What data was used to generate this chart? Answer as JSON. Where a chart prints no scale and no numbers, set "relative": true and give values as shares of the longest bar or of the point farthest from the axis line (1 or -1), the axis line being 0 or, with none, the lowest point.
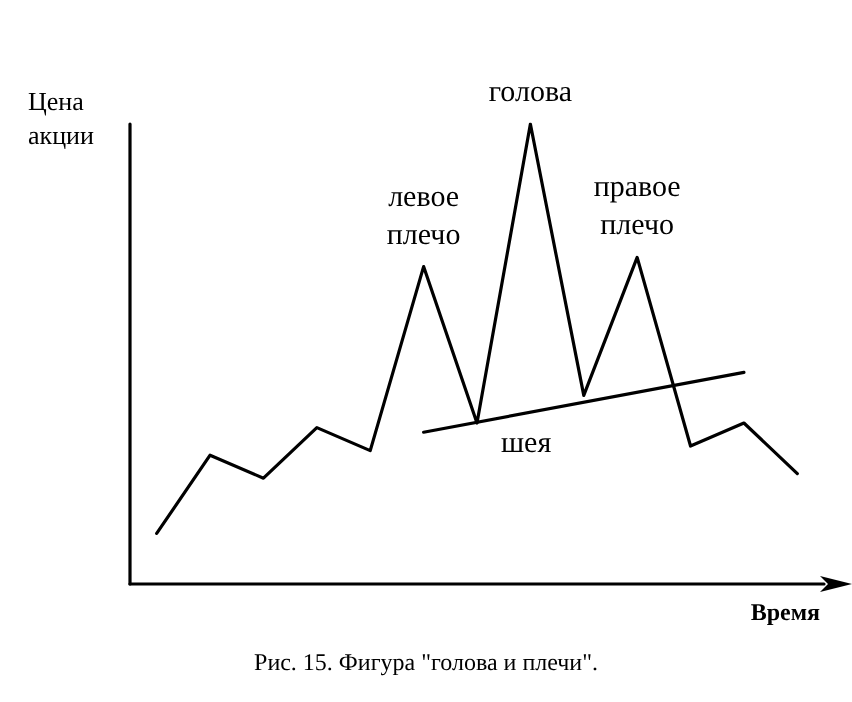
{
  "chart_data": {
    "type": "line",
    "relative": true,
    "xlabel": "Время",
    "ylabel": "Цена\nакции",
    "categories": [
      null,
      null,
      null,
      null,
      null,
      null,
      null,
      null,
      null,
      null,
      null,
      null,
      null
    ],
    "grid": false,
    "marker": "none",
    "line_style": "solid",
    "series": [
      {
        "color": "#000000",
        "values": [
          0.11,
          0.28,
          0.23,
          0.34,
          0.29,
          0.69,
          0.35,
          1,
          0.41,
          0.71,
          0.3,
          0.35,
          0.24
        ]
      },
      {
        "color": "#000000",
        "values": [
          null,
          null,
          null,
          null,
          null,
          0.33,
          null,
          null,
          null,
          null,
          null,
          0.46,
          null
        ]
      }
    ],
    "annotations": [
      "левое\nплечо",
      "голова",
      "правое\nплечо",
      "шея",
      "Рис. 15. Фигура \"голова и плечи\"."
    ]
  }
}
